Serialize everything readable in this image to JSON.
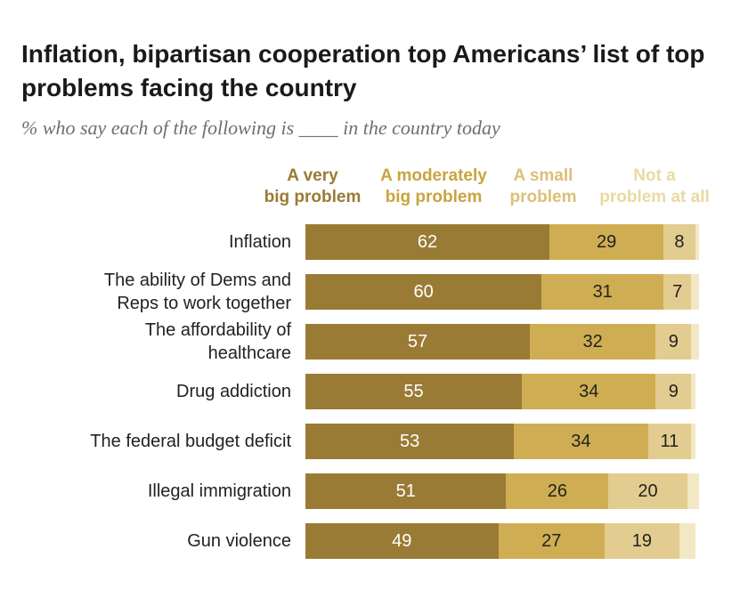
{
  "title": "Inflation, bipartisan cooperation top Americans’ list of top problems facing the country",
  "subtitle": "% who say each of the following is ____ in the country today",
  "colors": {
    "very_big": "#9a7b35",
    "moderately_big": "#cfad52",
    "small": "#e3cc8f",
    "not_at_all": "#f2e8c4"
  },
  "chart_data": {
    "type": "bar",
    "orientation": "horizontal",
    "stacked": true,
    "categories": [
      "Inflation",
      "The ability of Dems and Reps to work together",
      "The affordability of healthcare",
      "Drug addiction",
      "The federal budget deficit",
      "Illegal immigration",
      "Gun violence"
    ],
    "category_lines": [
      [
        "Inflation"
      ],
      [
        "The ability of Dems and",
        "Reps to work together"
      ],
      [
        "The affordability of",
        "healthcare"
      ],
      [
        "Drug addiction"
      ],
      [
        "The federal budget deficit"
      ],
      [
        "Illegal immigration"
      ],
      [
        "Gun violence"
      ]
    ],
    "series": [
      {
        "name": "A very big problem",
        "legend_lines": [
          "A very",
          "big problem"
        ],
        "color": "#9a7b35",
        "label_color": "#ffffff",
        "values": [
          62,
          60,
          57,
          55,
          53,
          51,
          49
        ]
      },
      {
        "name": "A moderately big problem",
        "legend_lines": [
          "A moderately",
          "big problem"
        ],
        "color": "#cfad52",
        "label_color": "#222222",
        "values": [
          29,
          31,
          32,
          34,
          34,
          26,
          27
        ]
      },
      {
        "name": "A small problem",
        "legend_lines": [
          "A small",
          "problem"
        ],
        "color": "#e3cc8f",
        "label_color": "#222222",
        "values": [
          8,
          7,
          9,
          9,
          11,
          20,
          19
        ]
      },
      {
        "name": "Not a problem at all",
        "legend_lines": [
          "Not a",
          "problem at all"
        ],
        "color": "#f2e8c4",
        "label_color": "#222222",
        "values": [
          1,
          2,
          2,
          1,
          1,
          3,
          4
        ],
        "labels_shown": false
      }
    ],
    "xlim": [
      0,
      100
    ],
    "grid": false,
    "legend_position": "top"
  }
}
